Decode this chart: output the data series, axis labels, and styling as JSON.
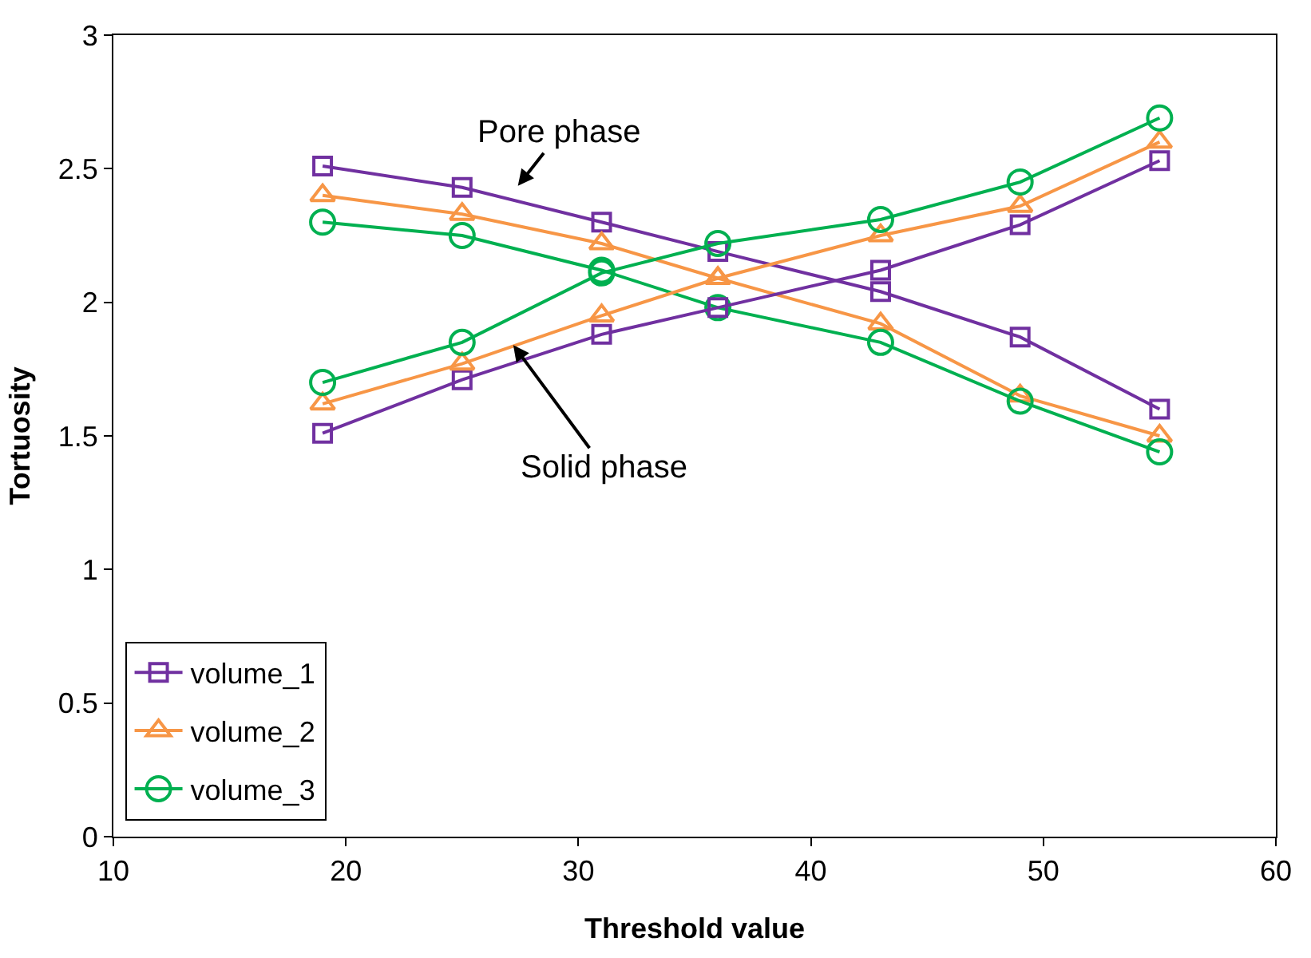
{
  "chart_data": {
    "type": "line",
    "xlabel": "Threshold value",
    "ylabel": "Tortuosity",
    "x": [
      19,
      25,
      31,
      36,
      43,
      49,
      55
    ],
    "xlim": [
      10,
      60
    ],
    "xticks": [
      10,
      20,
      30,
      40,
      50,
      60
    ],
    "ylim": [
      0,
      3
    ],
    "yticks": [
      0,
      0.5,
      1,
      1.5,
      2,
      2.5,
      3
    ],
    "legend": "bottom left",
    "series": [
      {
        "name": "volume_1",
        "color": "#7030a0",
        "marker": "square",
        "values": [
          2.51,
          2.43,
          2.3,
          2.19,
          2.04,
          1.87,
          1.6
        ]
      },
      {
        "name": "volume_2",
        "color": "#f79646",
        "marker": "triangle",
        "values": [
          2.4,
          2.33,
          2.22,
          2.09,
          1.92,
          1.65,
          1.5
        ]
      },
      {
        "name": "volume_3",
        "color": "#00b050",
        "marker": "circle",
        "values": [
          2.3,
          2.25,
          2.12,
          1.98,
          1.85,
          1.63,
          1.44
        ]
      },
      {
        "color": "#7030a0",
        "marker": "square",
        "values": [
          1.51,
          1.71,
          1.88,
          1.98,
          2.12,
          2.29,
          2.53
        ]
      },
      {
        "color": "#f79646",
        "marker": "triangle",
        "values": [
          1.62,
          1.77,
          1.95,
          2.09,
          2.25,
          2.36,
          2.6
        ]
      },
      {
        "color": "#00b050",
        "marker": "circle",
        "values": [
          1.7,
          1.85,
          2.11,
          2.22,
          2.31,
          2.45,
          2.69
        ]
      }
    ],
    "annotations": [
      "Pore phase",
      {
        "text": "Solid phase",
        "x": 27.2,
        "y": 1.84
      }
    ]
  }
}
